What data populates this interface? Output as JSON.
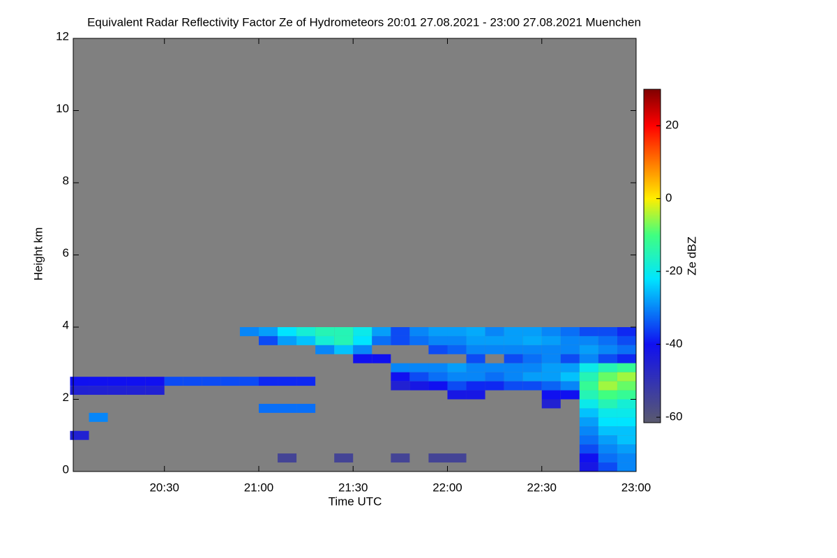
{
  "chart_data": {
    "type": "heatmap",
    "title": "Equivalent Radar Reflectivity Factor Ze of Hydrometeors   20:01 27.08.2021 - 23:00 27.08.2021 Muenchen",
    "x_label": "Time UTC",
    "y_label": "Height km",
    "colorbar_label": "Ze dBZ",
    "xlim": [
      20.0167,
      23.0
    ],
    "xticks": [
      {
        "value": 20.5,
        "label": "20:30"
      },
      {
        "value": 21.0,
        "label": "21:00"
      },
      {
        "value": 21.5,
        "label": "21:30"
      },
      {
        "value": 22.0,
        "label": "22:00"
      },
      {
        "value": 22.5,
        "label": "22:30"
      },
      {
        "value": 23.0,
        "label": "23:00"
      }
    ],
    "ylim": [
      0,
      12
    ],
    "yticks": [
      0,
      2,
      4,
      6,
      8,
      10,
      12
    ],
    "zlim": [
      -61.5,
      30
    ],
    "zticks": [
      -60,
      -40,
      -20,
      0,
      20
    ],
    "background": "#808080",
    "colorscale": [
      [
        -61.5,
        "#5a5a6e"
      ],
      [
        -40,
        "#1010f0"
      ],
      [
        -22,
        "#00e5ff"
      ],
      [
        -10,
        "#40ff80"
      ],
      [
        0,
        "#ffee00"
      ],
      [
        12,
        "#ff6000"
      ],
      [
        20,
        "#ff0000"
      ],
      [
        30,
        "#800000"
      ]
    ],
    "cells": [
      {
        "x": 20.05,
        "y": 2.5,
        "z": -40
      },
      {
        "x": 20.15,
        "y": 2.5,
        "z": -40
      },
      {
        "x": 20.25,
        "y": 2.5,
        "z": -40
      },
      {
        "x": 20.35,
        "y": 2.5,
        "z": -40
      },
      {
        "x": 20.45,
        "y": 2.5,
        "z": -40
      },
      {
        "x": 20.55,
        "y": 2.5,
        "z": -35
      },
      {
        "x": 20.65,
        "y": 2.5,
        "z": -35
      },
      {
        "x": 20.75,
        "y": 2.5,
        "z": -35
      },
      {
        "x": 20.85,
        "y": 2.5,
        "z": -35
      },
      {
        "x": 20.95,
        "y": 2.5,
        "z": -35
      },
      {
        "x": 21.05,
        "y": 2.5,
        "z": -38
      },
      {
        "x": 21.15,
        "y": 2.5,
        "z": -38
      },
      {
        "x": 21.25,
        "y": 2.5,
        "z": -38
      },
      {
        "x": 20.05,
        "y": 2.25,
        "z": -45
      },
      {
        "x": 20.15,
        "y": 2.25,
        "z": -45
      },
      {
        "x": 20.25,
        "y": 2.25,
        "z": -45
      },
      {
        "x": 20.35,
        "y": 2.25,
        "z": -45
      },
      {
        "x": 20.45,
        "y": 2.25,
        "z": -45
      },
      {
        "x": 20.15,
        "y": 1.5,
        "z": -30
      },
      {
        "x": 21.05,
        "y": 1.75,
        "z": -32
      },
      {
        "x": 21.15,
        "y": 1.75,
        "z": -32
      },
      {
        "x": 21.25,
        "y": 1.75,
        "z": -32
      },
      {
        "x": 20.05,
        "y": 1.0,
        "z": -45
      },
      {
        "x": 20.95,
        "y": 3.875,
        "z": -30
      },
      {
        "x": 21.05,
        "y": 3.875,
        "z": -28
      },
      {
        "x": 21.05,
        "y": 3.625,
        "z": -35
      },
      {
        "x": 21.15,
        "y": 3.875,
        "z": -22
      },
      {
        "x": 21.15,
        "y": 3.625,
        "z": -28
      },
      {
        "x": 21.25,
        "y": 3.875,
        "z": -18
      },
      {
        "x": 21.25,
        "y": 3.625,
        "z": -25
      },
      {
        "x": 21.35,
        "y": 3.875,
        "z": -15
      },
      {
        "x": 21.35,
        "y": 3.625,
        "z": -18
      },
      {
        "x": 21.35,
        "y": 3.375,
        "z": -30
      },
      {
        "x": 21.45,
        "y": 3.875,
        "z": -15
      },
      {
        "x": 21.45,
        "y": 3.625,
        "z": -15
      },
      {
        "x": 21.45,
        "y": 3.375,
        "z": -25
      },
      {
        "x": 21.55,
        "y": 3.875,
        "z": -20
      },
      {
        "x": 21.55,
        "y": 3.625,
        "z": -22
      },
      {
        "x": 21.55,
        "y": 3.375,
        "z": -30
      },
      {
        "x": 21.55,
        "y": 3.125,
        "z": -40
      },
      {
        "x": 21.65,
        "y": 3.875,
        "z": -28
      },
      {
        "x": 21.65,
        "y": 3.625,
        "z": -32
      },
      {
        "x": 21.65,
        "y": 3.125,
        "z": -40
      },
      {
        "x": 21.75,
        "y": 3.875,
        "z": -35
      },
      {
        "x": 21.75,
        "y": 3.625,
        "z": -35
      },
      {
        "x": 21.75,
        "y": 2.875,
        "z": -30
      },
      {
        "x": 21.75,
        "y": 2.625,
        "z": -40
      },
      {
        "x": 21.75,
        "y": 2.375,
        "z": -45
      },
      {
        "x": 21.85,
        "y": 3.875,
        "z": -30
      },
      {
        "x": 21.85,
        "y": 3.625,
        "z": -32
      },
      {
        "x": 21.85,
        "y": 2.875,
        "z": -30
      },
      {
        "x": 21.85,
        "y": 2.625,
        "z": -35
      },
      {
        "x": 21.85,
        "y": 2.375,
        "z": -42
      },
      {
        "x": 21.95,
        "y": 3.875,
        "z": -28
      },
      {
        "x": 21.95,
        "y": 3.625,
        "z": -30
      },
      {
        "x": 21.95,
        "y": 3.375,
        "z": -35
      },
      {
        "x": 21.95,
        "y": 2.875,
        "z": -30
      },
      {
        "x": 21.95,
        "y": 2.625,
        "z": -32
      },
      {
        "x": 21.95,
        "y": 2.375,
        "z": -40
      },
      {
        "x": 22.05,
        "y": 3.875,
        "z": -28
      },
      {
        "x": 22.05,
        "y": 3.625,
        "z": -30
      },
      {
        "x": 22.05,
        "y": 3.375,
        "z": -33
      },
      {
        "x": 22.05,
        "y": 2.875,
        "z": -28
      },
      {
        "x": 22.05,
        "y": 2.625,
        "z": -30
      },
      {
        "x": 22.05,
        "y": 2.375,
        "z": -35
      },
      {
        "x": 22.05,
        "y": 2.125,
        "z": -42
      },
      {
        "x": 22.15,
        "y": 3.875,
        "z": -27
      },
      {
        "x": 22.15,
        "y": 3.625,
        "z": -28
      },
      {
        "x": 22.15,
        "y": 3.375,
        "z": -30
      },
      {
        "x": 22.15,
        "y": 3.125,
        "z": -35
      },
      {
        "x": 22.15,
        "y": 2.875,
        "z": -30
      },
      {
        "x": 22.15,
        "y": 2.625,
        "z": -30
      },
      {
        "x": 22.15,
        "y": 2.375,
        "z": -38
      },
      {
        "x": 22.15,
        "y": 2.125,
        "z": -42
      },
      {
        "x": 22.25,
        "y": 3.875,
        "z": -30
      },
      {
        "x": 22.25,
        "y": 3.625,
        "z": -28
      },
      {
        "x": 22.25,
        "y": 3.375,
        "z": -30
      },
      {
        "x": 22.25,
        "y": 2.875,
        "z": -30
      },
      {
        "x": 22.25,
        "y": 2.625,
        "z": -32
      },
      {
        "x": 22.25,
        "y": 2.375,
        "z": -38
      },
      {
        "x": 22.35,
        "y": 3.875,
        "z": -28
      },
      {
        "x": 22.35,
        "y": 3.625,
        "z": -28
      },
      {
        "x": 22.35,
        "y": 3.375,
        "z": -30
      },
      {
        "x": 22.35,
        "y": 3.125,
        "z": -35
      },
      {
        "x": 22.35,
        "y": 2.875,
        "z": -30
      },
      {
        "x": 22.35,
        "y": 2.625,
        "z": -30
      },
      {
        "x": 22.35,
        "y": 2.375,
        "z": -35
      },
      {
        "x": 22.45,
        "y": 3.875,
        "z": -28
      },
      {
        "x": 22.45,
        "y": 3.625,
        "z": -27
      },
      {
        "x": 22.45,
        "y": 3.375,
        "z": -30
      },
      {
        "x": 22.45,
        "y": 3.125,
        "z": -32
      },
      {
        "x": 22.45,
        "y": 2.875,
        "z": -30
      },
      {
        "x": 22.45,
        "y": 2.625,
        "z": -28
      },
      {
        "x": 22.45,
        "y": 2.375,
        "z": -35
      },
      {
        "x": 22.55,
        "y": 3.875,
        "z": -30
      },
      {
        "x": 22.55,
        "y": 3.625,
        "z": -28
      },
      {
        "x": 22.55,
        "y": 3.375,
        "z": -30
      },
      {
        "x": 22.55,
        "y": 3.125,
        "z": -30
      },
      {
        "x": 22.55,
        "y": 2.875,
        "z": -28
      },
      {
        "x": 22.55,
        "y": 2.625,
        "z": -28
      },
      {
        "x": 22.55,
        "y": 2.375,
        "z": -33
      },
      {
        "x": 22.55,
        "y": 2.125,
        "z": -40
      },
      {
        "x": 22.55,
        "y": 1.875,
        "z": -45
      },
      {
        "x": 22.65,
        "y": 3.875,
        "z": -32
      },
      {
        "x": 22.65,
        "y": 3.625,
        "z": -30
      },
      {
        "x": 22.65,
        "y": 3.375,
        "z": -30
      },
      {
        "x": 22.65,
        "y": 3.125,
        "z": -35
      },
      {
        "x": 22.65,
        "y": 2.875,
        "z": -28
      },
      {
        "x": 22.65,
        "y": 2.625,
        "z": -25
      },
      {
        "x": 22.65,
        "y": 2.375,
        "z": -30
      },
      {
        "x": 22.65,
        "y": 2.125,
        "z": -40
      },
      {
        "x": 22.75,
        "y": 3.875,
        "z": -35
      },
      {
        "x": 22.75,
        "y": 3.625,
        "z": -30
      },
      {
        "x": 22.75,
        "y": 3.375,
        "z": -28
      },
      {
        "x": 22.75,
        "y": 3.125,
        "z": -30
      },
      {
        "x": 22.75,
        "y": 2.875,
        "z": -20
      },
      {
        "x": 22.75,
        "y": 2.625,
        "z": -15
      },
      {
        "x": 22.75,
        "y": 2.375,
        "z": -12
      },
      {
        "x": 22.75,
        "y": 2.125,
        "z": -15
      },
      {
        "x": 22.75,
        "y": 1.875,
        "z": -20
      },
      {
        "x": 22.75,
        "y": 1.625,
        "z": -25
      },
      {
        "x": 22.75,
        "y": 1.375,
        "z": -28
      },
      {
        "x": 22.75,
        "y": 1.125,
        "z": -30
      },
      {
        "x": 22.75,
        "y": 0.875,
        "z": -32
      },
      {
        "x": 22.75,
        "y": 0.625,
        "z": -35
      },
      {
        "x": 22.75,
        "y": 0.375,
        "z": -40
      },
      {
        "x": 22.75,
        "y": 0.125,
        "z": -42
      },
      {
        "x": 22.85,
        "y": 3.875,
        "z": -35
      },
      {
        "x": 22.85,
        "y": 3.625,
        "z": -32
      },
      {
        "x": 22.85,
        "y": 3.375,
        "z": -30
      },
      {
        "x": 22.85,
        "y": 3.125,
        "z": -35
      },
      {
        "x": 22.85,
        "y": 2.875,
        "z": -15
      },
      {
        "x": 22.85,
        "y": 2.625,
        "z": -8
      },
      {
        "x": 22.85,
        "y": 2.375,
        "z": -5
      },
      {
        "x": 22.85,
        "y": 2.125,
        "z": -10
      },
      {
        "x": 22.85,
        "y": 1.875,
        "z": -15
      },
      {
        "x": 22.85,
        "y": 1.625,
        "z": -20
      },
      {
        "x": 22.85,
        "y": 1.375,
        "z": -22
      },
      {
        "x": 22.85,
        "y": 1.125,
        "z": -25
      },
      {
        "x": 22.85,
        "y": 0.875,
        "z": -28
      },
      {
        "x": 22.85,
        "y": 0.625,
        "z": -30
      },
      {
        "x": 22.85,
        "y": 0.375,
        "z": -32
      },
      {
        "x": 22.85,
        "y": 0.125,
        "z": -35
      },
      {
        "x": 22.95,
        "y": 3.875,
        "z": -38
      },
      {
        "x": 22.95,
        "y": 3.625,
        "z": -35
      },
      {
        "x": 22.95,
        "y": 3.375,
        "z": -32
      },
      {
        "x": 22.95,
        "y": 3.125,
        "z": -38
      },
      {
        "x": 22.95,
        "y": 2.875,
        "z": -12
      },
      {
        "x": 22.95,
        "y": 2.625,
        "z": -5
      },
      {
        "x": 22.95,
        "y": 2.375,
        "z": -8
      },
      {
        "x": 22.95,
        "y": 2.125,
        "z": -12
      },
      {
        "x": 22.95,
        "y": 1.875,
        "z": -18
      },
      {
        "x": 22.95,
        "y": 1.625,
        "z": -20
      },
      {
        "x": 22.95,
        "y": 1.375,
        "z": -22
      },
      {
        "x": 22.95,
        "y": 1.125,
        "z": -25
      },
      {
        "x": 22.95,
        "y": 0.875,
        "z": -25
      },
      {
        "x": 22.95,
        "y": 0.625,
        "z": -28
      },
      {
        "x": 22.95,
        "y": 0.375,
        "z": -30
      },
      {
        "x": 22.95,
        "y": 0.125,
        "z": -30
      },
      {
        "x": 21.15,
        "y": 0.375,
        "z": -55
      },
      {
        "x": 21.45,
        "y": 0.375,
        "z": -55
      },
      {
        "x": 21.75,
        "y": 0.375,
        "z": -55
      },
      {
        "x": 21.95,
        "y": 0.375,
        "z": -55
      },
      {
        "x": 22.05,
        "y": 0.375,
        "z": -55
      }
    ]
  }
}
